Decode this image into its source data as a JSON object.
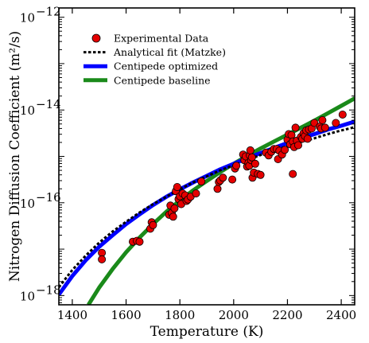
{
  "chart_data": {
    "type": "scatter",
    "xlabel": "Temperature (K)",
    "ylabel": "Nitrogen Diffusion Coefficient (m²/s)",
    "xlim": [
      1350,
      2450
    ],
    "ylim_log10": [
      -18.2,
      -11.8
    ],
    "y_scale": "log",
    "x_ticks": [
      1400,
      1600,
      1800,
      2000,
      2200,
      2400
    ],
    "x_tick_labels": [
      "1400",
      "1600",
      "1800",
      "2000",
      "2200",
      "2400"
    ],
    "y_ticks_log10": [
      -18,
      -16,
      -14,
      -12
    ],
    "y_tick_labels": [
      {
        "base": "10",
        "exp": "−18"
      },
      {
        "base": "10",
        "exp": "−16"
      },
      {
        "base": "10",
        "exp": "−14"
      },
      {
        "base": "10",
        "exp": "−12"
      }
    ],
    "legend_position": "upper-left",
    "grid": false,
    "series": [
      {
        "name": "Experimental Data",
        "kind": "scatter",
        "color": "#e50000",
        "points_log10": [
          [
            1510,
            -17.08
          ],
          [
            1510,
            -17.22
          ],
          [
            1625,
            -16.84
          ],
          [
            1640,
            -16.82
          ],
          [
            1650,
            -16.84
          ],
          [
            1690,
            -16.56
          ],
          [
            1695,
            -16.42
          ],
          [
            1700,
            -16.48
          ],
          [
            1760,
            -16.26
          ],
          [
            1765,
            -16.06
          ],
          [
            1770,
            -16.22
          ],
          [
            1775,
            -16.3
          ],
          [
            1780,
            -16.12
          ],
          [
            1785,
            -15.75
          ],
          [
            1790,
            -15.66
          ],
          [
            1795,
            -15.92
          ],
          [
            1800,
            -15.86
          ],
          [
            1805,
            -16.03
          ],
          [
            1810,
            -15.8
          ],
          [
            1820,
            -15.84
          ],
          [
            1825,
            -15.96
          ],
          [
            1830,
            -15.93
          ],
          [
            1840,
            -15.87
          ],
          [
            1860,
            -15.8
          ],
          [
            1880,
            -15.54
          ],
          [
            1940,
            -15.7
          ],
          [
            1945,
            -15.55
          ],
          [
            1950,
            -15.52
          ],
          [
            1960,
            -15.46
          ],
          [
            1995,
            -15.5
          ],
          [
            2005,
            -15.26
          ],
          [
            2010,
            -15.2
          ],
          [
            2035,
            -14.96
          ],
          [
            2040,
            -15.08
          ],
          [
            2045,
            -15.0
          ],
          [
            2050,
            -15.22
          ],
          [
            2055,
            -15.14
          ],
          [
            2058,
            -15.2
          ],
          [
            2060,
            -14.98
          ],
          [
            2062,
            -14.87
          ],
          [
            2065,
            -15.08
          ],
          [
            2068,
            -15.02
          ],
          [
            2070,
            -15.46
          ],
          [
            2075,
            -15.35
          ],
          [
            2080,
            -15.16
          ],
          [
            2090,
            -15.38
          ],
          [
            2100,
            -15.4
          ],
          [
            2120,
            -14.92
          ],
          [
            2130,
            -14.98
          ],
          [
            2140,
            -14.9
          ],
          [
            2150,
            -14.84
          ],
          [
            2160,
            -14.84
          ],
          [
            2165,
            -15.06
          ],
          [
            2170,
            -14.88
          ],
          [
            2180,
            -14.96
          ],
          [
            2190,
            -14.86
          ],
          [
            2200,
            -14.64
          ],
          [
            2205,
            -14.52
          ],
          [
            2210,
            -14.74
          ],
          [
            2215,
            -14.54
          ],
          [
            2220,
            -14.68
          ],
          [
            2225,
            -14.8
          ],
          [
            2230,
            -14.38
          ],
          [
            2235,
            -14.66
          ],
          [
            2240,
            -14.76
          ],
          [
            2250,
            -14.58
          ],
          [
            2255,
            -14.62
          ],
          [
            2260,
            -14.5
          ],
          [
            2265,
            -14.56
          ],
          [
            2270,
            -14.44
          ],
          [
            2275,
            -14.62
          ],
          [
            2280,
            -14.42
          ],
          [
            2290,
            -14.4
          ],
          [
            2300,
            -14.28
          ],
          [
            2320,
            -14.36
          ],
          [
            2325,
            -14.4
          ],
          [
            2330,
            -14.22
          ],
          [
            2340,
            -14.38
          ],
          [
            2380,
            -14.28
          ],
          [
            2405,
            -14.1
          ],
          [
            2220,
            -15.38
          ]
        ]
      },
      {
        "name": "Analytical fit (Matzke)",
        "kind": "line",
        "style": "dotted",
        "color": "#000000",
        "points_log10": [
          [
            1350,
            -17.82
          ],
          [
            1400,
            -17.45
          ],
          [
            1450,
            -17.14
          ],
          [
            1500,
            -16.86
          ],
          [
            1550,
            -16.62
          ],
          [
            1600,
            -16.41
          ],
          [
            1650,
            -16.21
          ],
          [
            1700,
            -16.03
          ],
          [
            1750,
            -15.87
          ],
          [
            1800,
            -15.71
          ],
          [
            1850,
            -15.56
          ],
          [
            1900,
            -15.43
          ],
          [
            1950,
            -15.3
          ],
          [
            2000,
            -15.19
          ],
          [
            2050,
            -15.08
          ],
          [
            2100,
            -14.97
          ],
          [
            2150,
            -14.87
          ],
          [
            2200,
            -14.78
          ],
          [
            2250,
            -14.69
          ],
          [
            2300,
            -14.61
          ],
          [
            2350,
            -14.52
          ],
          [
            2400,
            -14.44
          ],
          [
            2450,
            -14.37
          ]
        ]
      },
      {
        "name": "Centipede optimized",
        "kind": "line",
        "style": "solid",
        "color": "#0000ff",
        "points_log10": [
          [
            1350,
            -17.98
          ],
          [
            1400,
            -17.58
          ],
          [
            1450,
            -17.24
          ],
          [
            1500,
            -16.95
          ],
          [
            1550,
            -16.7
          ],
          [
            1600,
            -16.46
          ],
          [
            1650,
            -16.25
          ],
          [
            1700,
            -16.05
          ],
          [
            1750,
            -15.87
          ],
          [
            1800,
            -15.71
          ],
          [
            1850,
            -15.56
          ],
          [
            1900,
            -15.42
          ],
          [
            1950,
            -15.28
          ],
          [
            2000,
            -15.16
          ],
          [
            2050,
            -15.04
          ],
          [
            2100,
            -14.93
          ],
          [
            2150,
            -14.82
          ],
          [
            2200,
            -14.71
          ],
          [
            2250,
            -14.61
          ],
          [
            2300,
            -14.52
          ],
          [
            2350,
            -14.42
          ],
          [
            2400,
            -14.34
          ],
          [
            2450,
            -14.25
          ]
        ]
      },
      {
        "name": "Centipede baseline",
        "kind": "line",
        "style": "solid",
        "color": "#1a8a1a",
        "points_log10": [
          [
            1460,
            -18.2
          ],
          [
            1500,
            -17.83
          ],
          [
            1550,
            -17.43
          ],
          [
            1600,
            -17.07
          ],
          [
            1650,
            -16.75
          ],
          [
            1700,
            -16.46
          ],
          [
            1750,
            -16.19
          ],
          [
            1800,
            -15.95
          ],
          [
            1850,
            -15.73
          ],
          [
            1900,
            -15.53
          ],
          [
            1950,
            -15.34
          ],
          [
            2000,
            -15.16
          ],
          [
            2050,
            -14.99
          ],
          [
            2100,
            -14.83
          ],
          [
            2150,
            -14.68
          ],
          [
            2200,
            -14.53
          ],
          [
            2250,
            -14.38
          ],
          [
            2300,
            -14.23
          ],
          [
            2350,
            -14.07
          ],
          [
            2400,
            -13.91
          ],
          [
            2450,
            -13.75
          ]
        ]
      }
    ]
  }
}
